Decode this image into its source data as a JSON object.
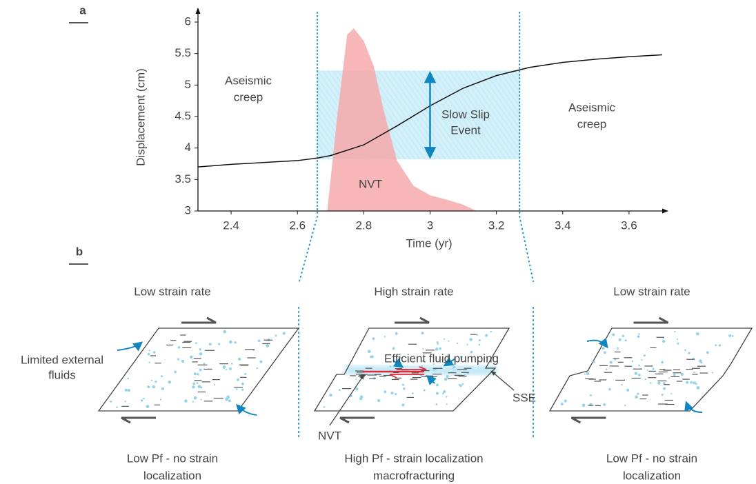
{
  "chart_data": {
    "type": "line",
    "panel_label": "a",
    "xlabel": "Time (yr)",
    "ylabel": "Displacement (cm)",
    "xlim": [
      2.3,
      3.7
    ],
    "ylim": [
      3,
      6
    ],
    "xticks": [
      2.4,
      2.6,
      2.8,
      3,
      3.2,
      3.4,
      3.6
    ],
    "yticks": [
      3,
      3.5,
      4,
      4.5,
      5,
      5.5,
      6
    ],
    "x": [
      2.3,
      2.4,
      2.5,
      2.6,
      2.66,
      2.7,
      2.8,
      2.9,
      3.0,
      3.1,
      3.2,
      3.3,
      3.4,
      3.5,
      3.6,
      3.7
    ],
    "series": [
      {
        "color": "#111111",
        "values": [
          3.7,
          3.74,
          3.77,
          3.8,
          3.84,
          3.88,
          4.05,
          4.35,
          4.67,
          4.95,
          5.15,
          5.28,
          5.36,
          5.41,
          5.45,
          5.48
        ]
      }
    ],
    "area": {
      "label": "NVT",
      "color": "#f6a9ab",
      "x": [
        2.69,
        2.72,
        2.75,
        2.77,
        2.8,
        2.83,
        2.86,
        2.9,
        2.95,
        3.0,
        3.05,
        3.1,
        3.14
      ],
      "values": [
        3,
        4.5,
        5.8,
        5.9,
        5.7,
        5.3,
        4.6,
        3.8,
        3.4,
        3.25,
        3.18,
        3.1,
        3.0
      ]
    },
    "band": {
      "label": [
        "Slow Slip",
        "Event"
      ],
      "color": "#bfe6f5",
      "x": [
        2.66,
        3.27
      ],
      "y": [
        3.82,
        5.23
      ]
    },
    "annotations": [
      [
        "Aseismic",
        "creep"
      ],
      [
        "Aseismic",
        "creep"
      ]
    ]
  },
  "panel_b": {
    "label": "b",
    "panels": [
      {
        "title": "Low strain rate",
        "caption": [
          "Low Pf - no strain",
          "localization"
        ]
      },
      {
        "title": "High strain rate",
        "caption": [
          "High Pf - strain localization",
          "macrofracturing"
        ]
      },
      {
        "title": "Low strain rate",
        "caption": [
          "Low Pf - no strain",
          "localization"
        ]
      }
    ],
    "fluids": [
      "Limited external",
      "fluids"
    ],
    "pumping": "Efficient fluid pumping",
    "sse": "SSE",
    "nvt": "NVT"
  }
}
